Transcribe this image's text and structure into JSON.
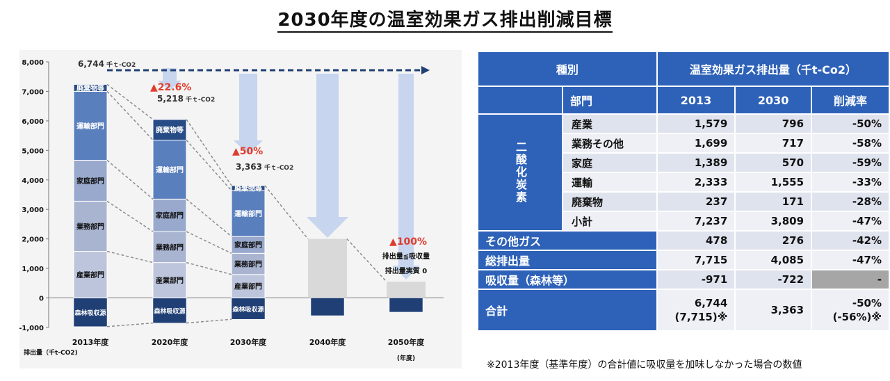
{
  "title": "2030年度の温室効果ガス排出削減目標",
  "chart_data": {
    "type": "bar",
    "categories": [
      "2013年度",
      "2020年度",
      "2030年度",
      "2040年度",
      "2050年度"
    ],
    "xlabel": "(年度)",
    "ylabel": "排出量（千t-CO2)",
    "ylim": [
      -1000,
      8000
    ],
    "yticks": [
      "-1,000",
      "0",
      "1,000",
      "2,000",
      "3,000",
      "4,000",
      "5,000",
      "6,000",
      "7,000",
      "8,000"
    ],
    "series": [
      {
        "name": "森林吸収源",
        "color": "#1f3f75",
        "values": [
          -971,
          -850,
          -722,
          -600,
          -480
        ]
      },
      {
        "name": "産業部門",
        "color": "#bcc5dc",
        "values": [
          1579,
          1200,
          796,
          null,
          null
        ]
      },
      {
        "name": "業務部門",
        "color": "#a9b4d1",
        "values": [
          1699,
          1050,
          717,
          null,
          null
        ]
      },
      {
        "name": "家庭部門",
        "color": "#99a9cd",
        "values": [
          1389,
          1100,
          570,
          null,
          null
        ]
      },
      {
        "name": "運輸部門",
        "color": "#5a7fbd",
        "values": [
          2333,
          2000,
          1555,
          null,
          null
        ]
      },
      {
        "name": "廃棄物等",
        "color": "#274b85",
        "values": [
          237,
          700,
          171,
          null,
          null
        ]
      }
    ],
    "gray_bars": [
      null,
      null,
      null,
      2000,
      550
    ],
    "totals": [
      "6,744",
      "5,218",
      "3,363",
      null,
      null
    ],
    "total_unit": "千ｔ-CO2",
    "reductions": [
      "",
      "▲22.6%",
      "▲50%",
      "",
      "▲100%"
    ],
    "annotation_2050": [
      "排出量≦吸収量",
      "排出量実質 0"
    ],
    "arrow_color": "#c7d5ee",
    "target_line_color": "#1f3f75"
  },
  "table": {
    "header_category": "種別",
    "header_emissions": "温室効果ガス排出量（千t-Co2）",
    "col_sector": "部門",
    "col_2013": "2013",
    "col_2030": "2030",
    "col_rate": "削減率",
    "co2_group": "二酸化炭素",
    "rows": [
      {
        "label": "産業",
        "v2013": "1,579",
        "v2030": "796",
        "rate": "-50%"
      },
      {
        "label": "業務その他",
        "v2013": "1,699",
        "v2030": "717",
        "rate": "-58%"
      },
      {
        "label": "家庭",
        "v2013": "1,389",
        "v2030": "570",
        "rate": "-59%"
      },
      {
        "label": "運輸",
        "v2013": "2,333",
        "v2030": "1,555",
        "rate": "-33%"
      },
      {
        "label": "廃棄物",
        "v2013": "237",
        "v2030": "171",
        "rate": "-28%"
      },
      {
        "label": "小計",
        "v2013": "7,237",
        "v2030": "3,809",
        "rate": "-47%"
      }
    ],
    "other_gas": {
      "label": "その他ガス",
      "v2013": "478",
      "v2030": "276",
      "rate": "-42%"
    },
    "total_emissions": {
      "label": "総排出量",
      "v2013": "7,715",
      "v2030": "4,085",
      "rate": "-47%"
    },
    "absorption": {
      "label": "吸収量（森林等）",
      "v2013": "-971",
      "v2030": "-722",
      "rate": "-"
    },
    "grand_total": {
      "label": "合計",
      "v2013_a": "6,744",
      "v2013_b": "(7,715)※",
      "v2030": "3,363",
      "rate_a": "-50%",
      "rate_b": "(-56%)※"
    }
  },
  "note": "※2013年度（基準年度）の合計値に吸収量を加味しなかった場合の数値"
}
